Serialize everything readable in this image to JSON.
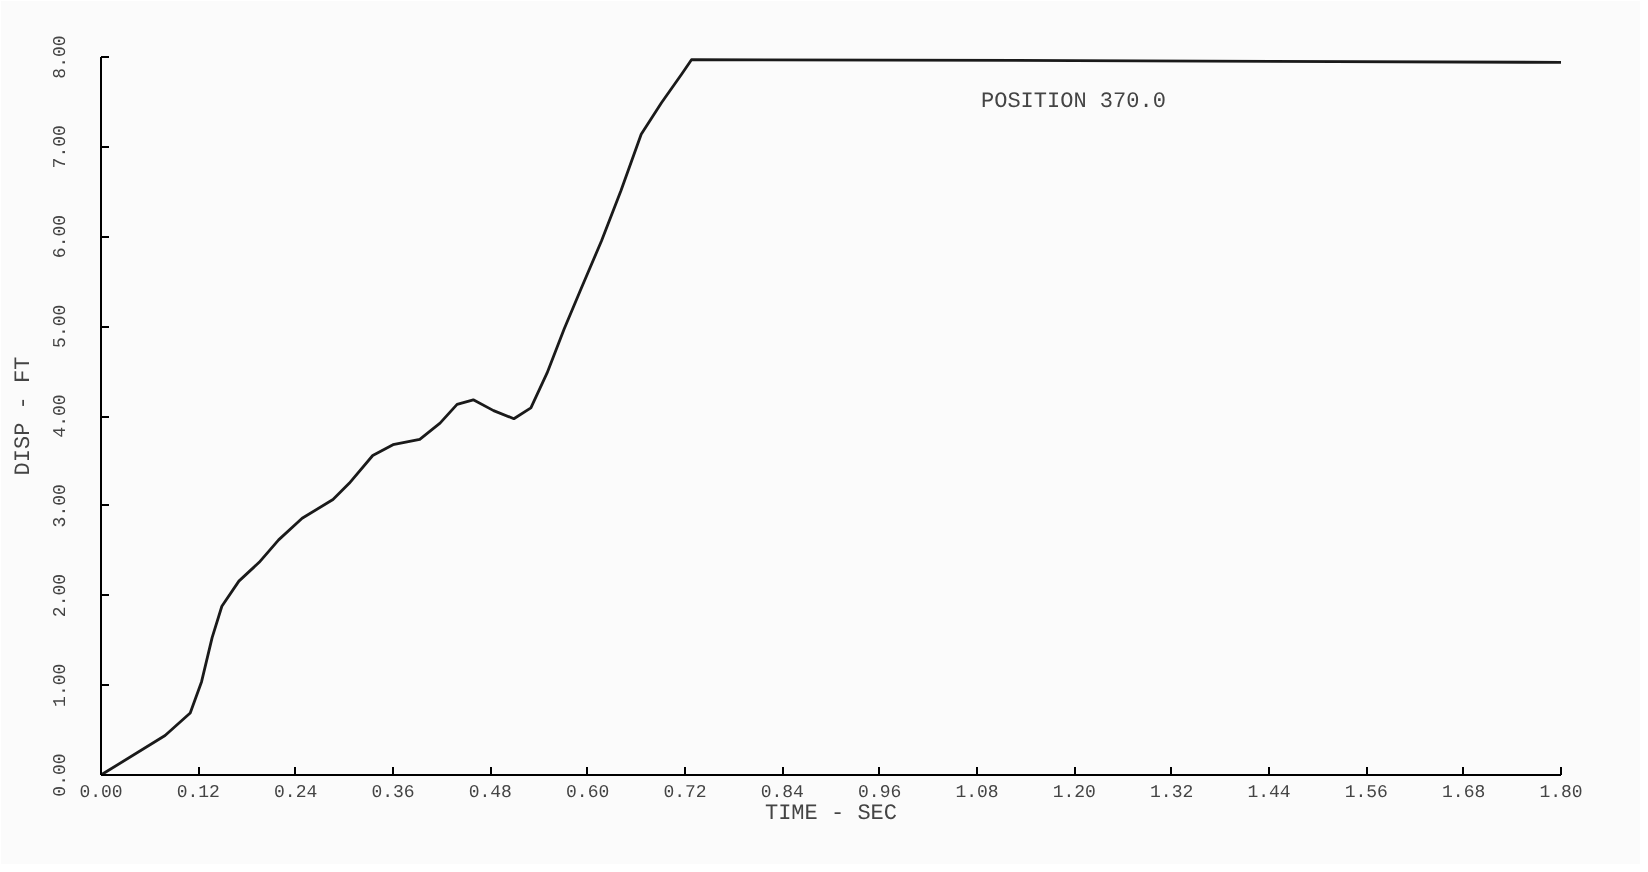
{
  "chart_data": {
    "type": "line",
    "xlabel": "TIME - SEC",
    "ylabel": "DISP - FT",
    "annotations": [
      "POSITION 370.0"
    ],
    "series": [
      {
        "color": "#1a1a1a",
        "x": [
          0,
          0.079,
          0.11,
          0.124,
          0.137,
          0.149,
          0.17,
          0.195,
          0.219,
          0.248,
          0.286,
          0.306,
          0.335,
          0.36,
          0.393,
          0.418,
          0.439,
          0.459,
          0.484,
          0.509,
          0.53,
          0.55,
          0.571,
          0.592,
          0.617,
          0.641,
          0.666,
          0.691,
          0.716,
          0.728,
          1.2,
          1.8
        ],
        "values": [
          0,
          0.44,
          0.69,
          1.04,
          1.53,
          1.88,
          2.16,
          2.37,
          2.62,
          2.86,
          3.07,
          3.25,
          3.56,
          3.68,
          3.74,
          3.92,
          4.13,
          4.18,
          4.06,
          3.97,
          4.09,
          4.48,
          4.97,
          5.42,
          5.95,
          6.51,
          7.14,
          7.49,
          7.81,
          7.97,
          7.96,
          7.94
        ]
      }
    ],
    "xlim": [
      0,
      1.8
    ],
    "ylim": [
      0,
      8
    ],
    "xticks": [
      {
        "value": 0,
        "label": "0.00"
      },
      {
        "value": 0.12,
        "label": "0.12"
      },
      {
        "value": 0.24,
        "label": "0.24"
      },
      {
        "value": 0.36,
        "label": "0.36"
      },
      {
        "value": 0.48,
        "label": "0.48"
      },
      {
        "value": 0.6,
        "label": "0.60"
      },
      {
        "value": 0.72,
        "label": "0.72"
      },
      {
        "value": 0.84,
        "label": "0.84"
      },
      {
        "value": 0.96,
        "label": "0.96"
      },
      {
        "value": 1.08,
        "label": "1.08"
      },
      {
        "value": 1.2,
        "label": "1.20"
      },
      {
        "value": 1.32,
        "label": "1.32"
      },
      {
        "value": 1.44,
        "label": "1.44"
      },
      {
        "value": 1.56,
        "label": "1.56"
      },
      {
        "value": 1.68,
        "label": "1.68"
      },
      {
        "value": 1.8,
        "label": "1.80"
      }
    ],
    "yticks": [
      {
        "value": 0,
        "label": "0.00"
      },
      {
        "value": 1,
        "label": "1.00"
      },
      {
        "value": 2,
        "label": "2.00"
      },
      {
        "value": 3,
        "label": "3.00"
      },
      {
        "value": 4,
        "label": "4.00"
      },
      {
        "value": 5,
        "label": "5.00"
      },
      {
        "value": 6,
        "label": "6.00"
      },
      {
        "value": 7,
        "label": "7.00"
      },
      {
        "value": 8,
        "label": "8.00"
      }
    ],
    "grid": false,
    "line_style": "solid"
  }
}
